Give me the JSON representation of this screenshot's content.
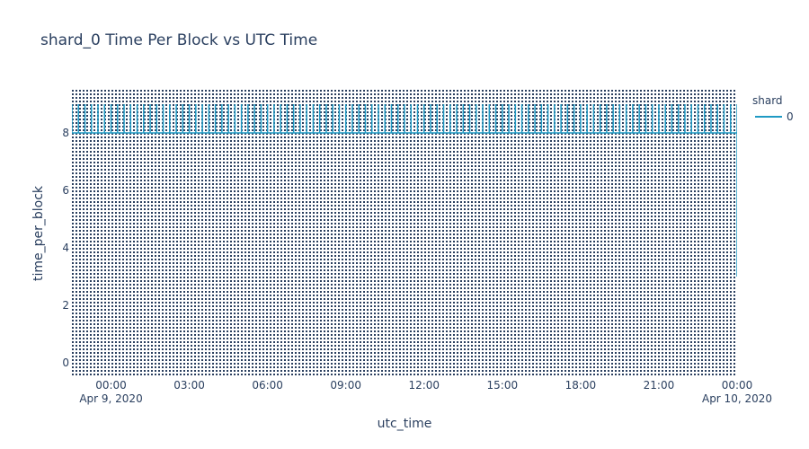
{
  "chart_data": {
    "type": "line",
    "title": "shard_0 Time Per Block vs UTC Time",
    "xlabel": "utc_time",
    "ylabel": "time_per_block",
    "legend": {
      "title": "shard",
      "placement": "top-right",
      "entries": [
        {
          "name": "0",
          "color": "#1f9ac4"
        }
      ]
    },
    "x_ticks": [
      {
        "time": "2020-04-09T00:00",
        "label": "00:00",
        "sublabel": "Apr 9, 2020"
      },
      {
        "time": "2020-04-09T03:00",
        "label": "03:00",
        "sublabel": ""
      },
      {
        "time": "2020-04-09T06:00",
        "label": "06:00",
        "sublabel": ""
      },
      {
        "time": "2020-04-09T09:00",
        "label": "09:00",
        "sublabel": ""
      },
      {
        "time": "2020-04-09T12:00",
        "label": "12:00",
        "sublabel": ""
      },
      {
        "time": "2020-04-09T15:00",
        "label": "15:00",
        "sublabel": ""
      },
      {
        "time": "2020-04-09T18:00",
        "label": "18:00",
        "sublabel": ""
      },
      {
        "time": "2020-04-09T21:00",
        "label": "21:00",
        "sublabel": ""
      },
      {
        "time": "2020-04-10T00:00",
        "label": "00:00",
        "sublabel": "Apr 10, 2020"
      }
    ],
    "y_ticks": [
      0,
      2,
      4,
      6,
      8
    ],
    "xlim": [
      "2020-04-08T22:30",
      "2020-04-10T00:00"
    ],
    "ylim": [
      -0.5,
      9.5
    ],
    "grid": false,
    "series": [
      {
        "name": "0",
        "color": "#1f9ac4",
        "baseline_value": 8,
        "spike_value": 9,
        "spike_interval_minutes": 15,
        "ends_at": "2020-04-10T00:00",
        "end_drop_to": 3
      }
    ],
    "background_pattern_color": "#2a3f5f"
  }
}
